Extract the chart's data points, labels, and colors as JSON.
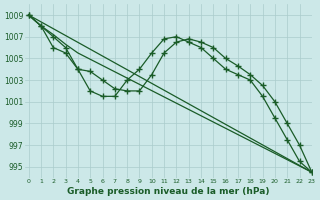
{
  "title": "Graphe pression niveau de la mer (hPa)",
  "bg_color": "#cce8e8",
  "grid_color": "#aacccc",
  "line_color": "#1a5c28",
  "marker": "+",
  "marker_size": 4,
  "line_width": 0.9,
  "xlim": [
    -0.3,
    23
  ],
  "ylim": [
    994.0,
    1010.0
  ],
  "yticks": [
    995,
    997,
    999,
    1001,
    1003,
    1005,
    1007,
    1009
  ],
  "xticks": [
    0,
    1,
    2,
    3,
    4,
    5,
    6,
    7,
    8,
    9,
    10,
    11,
    12,
    13,
    14,
    15,
    16,
    17,
    18,
    19,
    20,
    21,
    22,
    23
  ],
  "series": [
    {
      "x": [
        0,
        23
      ],
      "y": [
        1009,
        994.5
      ],
      "markers": false
    },
    {
      "x": [
        0,
        1,
        2,
        3,
        4,
        23
      ],
      "y": [
        1009,
        1008,
        1007.2,
        1006.3,
        1005.5,
        994.5
      ],
      "markers": false
    },
    {
      "x": [
        0,
        1,
        2,
        3,
        4,
        5,
        6,
        7,
        8,
        9,
        10,
        11,
        12,
        13,
        14,
        15,
        16,
        17,
        18,
        19,
        20,
        21,
        22,
        23
      ],
      "y": [
        1009,
        1008,
        1007,
        1006,
        1004,
        1002,
        1001.5,
        1001.5,
        1003,
        1004,
        1005.5,
        1006.8,
        1007.0,
        1006.5,
        1006.0,
        1005.0,
        1004.0,
        1003.5,
        1003,
        1001.5,
        999.5,
        997.5,
        995.5,
        994.5
      ],
      "markers": true
    },
    {
      "x": [
        0,
        1,
        2,
        3,
        4,
        5,
        6,
        7,
        8,
        9,
        10,
        11,
        12,
        13,
        14,
        15,
        16,
        17,
        18,
        19,
        20,
        21,
        22,
        23
      ],
      "y": [
        1009,
        1008,
        1006,
        1005.5,
        1004,
        1003.8,
        1003.0,
        1002.2,
        1002.0,
        1002.0,
        1003.5,
        1005.5,
        1006.5,
        1006.8,
        1006.5,
        1006.0,
        1005.0,
        1004.3,
        1003.5,
        1002.5,
        1001.0,
        999.0,
        997.0,
        994.5
      ],
      "markers": true
    }
  ]
}
